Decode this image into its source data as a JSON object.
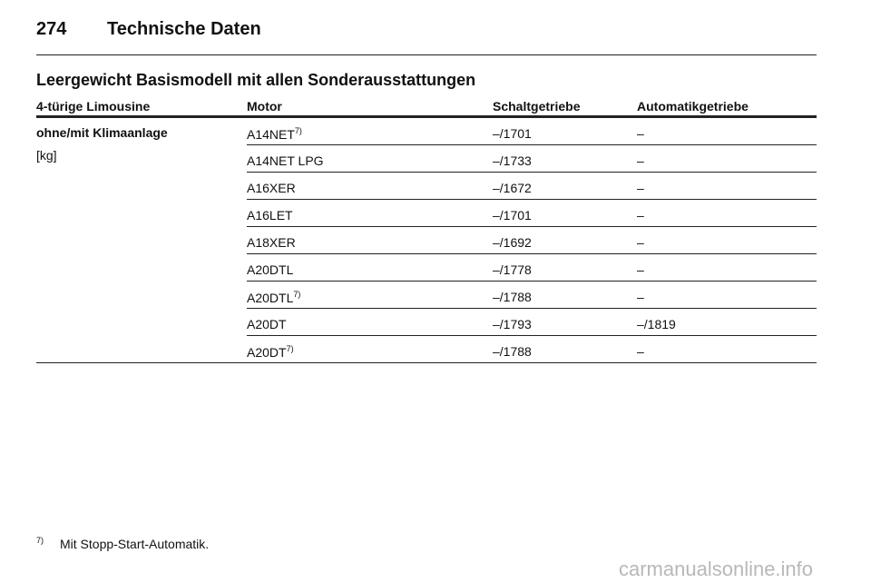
{
  "header": {
    "page_number": "274",
    "title": "Technische Daten"
  },
  "section": {
    "title": "Leergewicht Basismodell mit allen Sonderausstattungen"
  },
  "table": {
    "columns": [
      "4-türige Limousine",
      "Motor",
      "Schaltgetriebe",
      "Automatikgetriebe"
    ],
    "row_label": "ohne/mit Klimaanlage",
    "unit": "[kg]",
    "rows": [
      {
        "motor": "A14NET",
        "note": "7)",
        "manual": "–/1701",
        "auto": "–"
      },
      {
        "motor": "A14NET LPG",
        "manual": "–/1733",
        "auto": "–"
      },
      {
        "motor": "A16XER",
        "manual": "–/1672",
        "auto": "–"
      },
      {
        "motor": "A16LET",
        "manual": "–/1701",
        "auto": "–"
      },
      {
        "motor": "A18XER",
        "manual": "–/1692",
        "auto": "–"
      },
      {
        "motor": "A20DTL",
        "manual": "–/1778",
        "auto": "–"
      },
      {
        "motor": "A20DTL",
        "note": "7)",
        "manual": "–/1788",
        "auto": "–"
      },
      {
        "motor": "A20DT",
        "manual": "–/1793",
        "auto": "–/1819"
      },
      {
        "motor": "A20DT",
        "note": "7)",
        "manual": "–/1788",
        "auto": "–"
      }
    ]
  },
  "footnote": {
    "marker": "7)",
    "text": "Mit Stopp-Start-Automatik."
  },
  "watermark": "carmanualsonline.info"
}
